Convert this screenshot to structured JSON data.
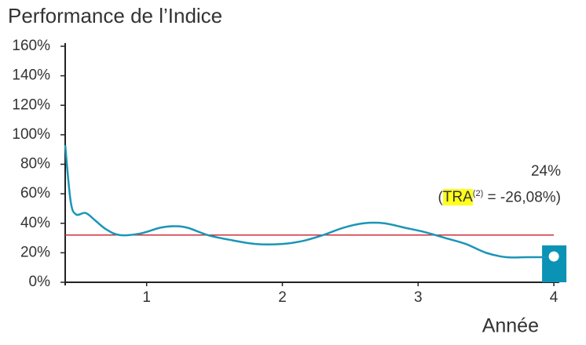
{
  "chart_data": {
    "type": "line",
    "title": "Performance de l’Indice",
    "x_label": "Année",
    "xlim": [
      0.4,
      4.15
    ],
    "xticks": [
      1,
      2,
      3,
      4
    ],
    "ylim": [
      0,
      160
    ],
    "yticks": [
      {
        "value": 0,
        "label": "0%"
      },
      {
        "value": 20,
        "label": "20%"
      },
      {
        "value": 40,
        "label": "40%"
      },
      {
        "value": 60,
        "label": "60%"
      },
      {
        "value": 80,
        "label": "80%"
      },
      {
        "value": 100,
        "label": "100%"
      },
      {
        "value": 120,
        "label": "120%"
      },
      {
        "value": 140,
        "label": "140%"
      },
      {
        "value": 160,
        "label": "160%"
      }
    ],
    "series": [
      {
        "color": "#1b95b6",
        "x": [
          0.4,
          0.44,
          0.48,
          0.55,
          0.62,
          0.7,
          0.8,
          0.95,
          1.1,
          1.2,
          1.3,
          1.45,
          1.6,
          1.8,
          2.0,
          2.15,
          2.3,
          2.45,
          2.6,
          2.75,
          2.9,
          3.05,
          3.2,
          3.35,
          3.5,
          3.65,
          3.8,
          3.95
        ],
        "values": [
          93,
          55,
          46,
          47,
          42,
          36,
          32,
          33,
          37,
          38,
          37,
          32,
          29,
          26,
          26,
          28,
          32,
          37,
          40,
          40,
          37,
          34,
          30,
          26,
          20,
          17,
          17,
          17
        ]
      }
    ],
    "reference_line": {
      "value": 32,
      "color": "#d02f3c"
    },
    "final_bar": {
      "x": 4,
      "value": 25,
      "color": "#0a93b5"
    },
    "final_point": {
      "x": 4,
      "value": 17.5
    },
    "annotation": {
      "line1": "24%",
      "prefix": "(",
      "highlight": "TRA",
      "note": "(2)",
      "suffix": " = -26,08%)"
    }
  }
}
